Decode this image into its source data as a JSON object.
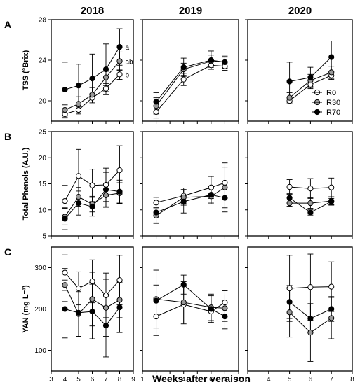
{
  "x_label": "Weeks after veraison",
  "legend": [
    {
      "name": "R0",
      "color": "#ffffff"
    },
    {
      "name": "R30",
      "color": "#999999"
    },
    {
      "name": "R70",
      "color": "#000000"
    }
  ],
  "chart_data": {
    "type": "line",
    "columns": [
      {
        "year": "2018",
        "xlim": [
          3,
          9
        ],
        "xticks": [
          3,
          4,
          5,
          6,
          7,
          8,
          9
        ]
      },
      {
        "year": "2019",
        "xlim": [
          1,
          8
        ],
        "xticks": [
          1,
          2,
          3,
          4,
          5,
          6,
          7,
          8
        ]
      },
      {
        "year": "2020",
        "xlim": [
          3,
          8
        ],
        "xticks": [
          3,
          4,
          5,
          6,
          7,
          8
        ]
      }
    ],
    "rows": [
      {
        "panel": "A",
        "ylabel": "TSS (°Brix)",
        "ylim": [
          18,
          28
        ],
        "yticks": [
          20,
          24,
          28
        ],
        "data": [
          {
            "x": [
              4,
              5,
              6,
              7,
              8
            ],
            "series": [
              {
                "name": "R0",
                "values": [
                  18.7,
                  19.1,
                  20.3,
                  21.2,
                  22.6
                ],
                "err": [
                  0.4,
                  0.4,
                  0.4,
                  0.3,
                  0.5
                ]
              },
              {
                "name": "R30",
                "values": [
                  19.1,
                  19.7,
                  20.6,
                  22.3,
                  23.9
                ],
                "err": [
                  0.5,
                  0.7,
                  0.7,
                  0.6,
                  0.9
                ]
              },
              {
                "name": "R70",
                "values": [
                  21.1,
                  21.5,
                  22.2,
                  23.1,
                  25.3
                ],
                "err": [
                  2.7,
                  2.1,
                  2.4,
                  2.5,
                  1.8
                ]
              }
            ],
            "annotations": [
              {
                "text": "a",
                "series": "R70"
              },
              {
                "text": "ab",
                "series": "R30"
              },
              {
                "text": "b",
                "series": "R0"
              }
            ]
          },
          {
            "x": [
              2,
              4,
              6,
              7
            ],
            "series": [
              {
                "name": "R0",
                "values": [
                  18.9,
                  22.1,
                  23.5,
                  23.4
                ],
                "err": [
                  0.6,
                  0.6,
                  0.4,
                  0.4
                ]
              },
              {
                "name": "R30",
                "values": [
                  19.5,
                  23.1,
                  23.9,
                  23.8
                ],
                "err": [
                  0.8,
                  0.6,
                  0.6,
                  0.5
                ]
              },
              {
                "name": "R70",
                "values": [
                  19.9,
                  23.3,
                  24.0,
                  23.8
                ],
                "err": [
                  0.9,
                  0.9,
                  0.9,
                  0.6
                ]
              }
            ]
          },
          {
            "x": [
              5,
              6,
              7
            ],
            "series": [
              {
                "name": "R0",
                "values": [
                  20.0,
                  21.6,
                  22.5
                ],
                "err": [
                  0.3,
                  0.4,
                  0.4
                ]
              },
              {
                "name": "R30",
                "values": [
                  20.3,
                  22.0,
                  22.8
                ],
                "err": [
                  0.5,
                  0.6,
                  0.6
                ]
              },
              {
                "name": "R70",
                "values": [
                  21.9,
                  22.3,
                  24.3
                ],
                "err": [
                  1.9,
                  1.0,
                  1.6
                ]
              }
            ]
          }
        ]
      },
      {
        "panel": "B",
        "ylabel": "Total Phenols (A.U.)",
        "ylim": [
          5,
          25
        ],
        "yticks": [
          5,
          10,
          15,
          20,
          25
        ],
        "data": [
          {
            "x": [
              4,
              5,
              6,
              7,
              8
            ],
            "series": [
              {
                "name": "R0",
                "values": [
                  11.7,
                  16.5,
                  14.7,
                  14.8,
                  17.6
                ],
                "err": [
                  3.0,
                  5.1,
                  3.1,
                  3.2,
                  4.7
                ]
              },
              {
                "name": "R30",
                "values": [
                  8.7,
                  12.5,
                  11.1,
                  12.8,
                  13.2
                ],
                "err": [
                  1.6,
                  1.8,
                  1.5,
                  2.3,
                  2.0
                ]
              },
              {
                "name": "R70",
                "values": [
                  8.3,
                  11.3,
                  10.6,
                  13.9,
                  13.5
                ],
                "err": [
                  2.1,
                  2.3,
                  1.8,
                  3.3,
                  2.2
                ]
              }
            ]
          },
          {
            "x": [
              2,
              4,
              6,
              7
            ],
            "series": [
              {
                "name": "R0",
                "values": [
                  11.4,
                  12.7,
                  14.3,
                  15.2
                ],
                "err": [
                  1.0,
                  1.5,
                  2.1,
                  3.0
                ]
              },
              {
                "name": "R30",
                "values": [
                  8.9,
                  12.4,
                  12.6,
                  14.3
                ],
                "err": [
                  1.5,
                  1.5,
                  1.5,
                  4.7
                ]
              },
              {
                "name": "R70",
                "values": [
                  9.5,
                  11.6,
                  12.9,
                  12.3
                ],
                "err": [
                  2.0,
                  2.2,
                  1.6,
                  1.9
                ]
              }
            ]
          },
          {
            "x": [
              5,
              6,
              7
            ],
            "series": [
              {
                "name": "R0",
                "values": [
                  14.4,
                  14.1,
                  14.3
                ],
                "err": [
                  1.4,
                  1.9,
                  1.8
                ]
              },
              {
                "name": "R30",
                "values": [
                  11.3,
                  11.3,
                  11.7
                ],
                "err": [
                  0.6,
                  1.0,
                  0.8
                ]
              },
              {
                "name": "R70",
                "values": [
                  12.3,
                  9.5,
                  11.6
                ],
                "err": [
                  0.8,
                  0.5,
                  0.6
                ]
              }
            ]
          }
        ]
      },
      {
        "panel": "C",
        "ylabel": "YAN (mg L⁻¹)",
        "ylim": [
          50,
          350
        ],
        "yticks": [
          100,
          200,
          300
        ],
        "data": [
          {
            "x": [
              4,
              5,
              6,
              7,
              8
            ],
            "series": [
              {
                "name": "R0",
                "values": [
                  288,
                  250,
                  267,
                  233,
                  270
                ],
                "err": [
                  43,
                  40,
                  52,
                  54,
                  60
                ]
              },
              {
                "name": "R30",
                "values": [
                  258,
                  188,
                  224,
                  203,
                  222
                ],
                "err": [
                  40,
                  54,
                  65,
                  69,
                  43
                ]
              },
              {
                "name": "R70",
                "values": [
                  200,
                  191,
                  194,
                  160,
                  204
                ],
                "err": [
                  70,
                  58,
                  66,
                  76,
                  61
                ]
              }
            ]
          },
          {
            "x": [
              2,
              4,
              6,
              7
            ],
            "series": [
              {
                "name": "R0",
                "values": [
                  182,
                  211,
                  194,
                  216
                ],
                "err": [
                  46,
                  47,
                  28,
                  28
                ]
              },
              {
                "name": "R30",
                "values": [
                  224,
                  216,
                  204,
                  202
                ],
                "err": [
                  70,
                  50,
                  32,
                  32
                ]
              },
              {
                "name": "R70",
                "values": [
                  220,
                  259,
                  200,
                  182
                ],
                "err": [
                  38,
                  23,
                  32,
                  30
                ]
              }
            ]
          },
          {
            "x": [
              5,
              6,
              7
            ],
            "series": [
              {
                "name": "R0",
                "values": [
                  250,
                  253,
                  254
                ],
                "err": [
                  80,
                  80,
                  60
                ]
              },
              {
                "name": "R30",
                "values": [
                  192,
                  143,
                  178
                ],
                "err": [
                  60,
                  70,
                  50
                ]
              },
              {
                "name": "R70",
                "values": [
                  217,
                  177,
                  200
                ],
                "err": [
                  40,
                  35,
                  30
                ]
              }
            ]
          }
        ]
      }
    ]
  }
}
